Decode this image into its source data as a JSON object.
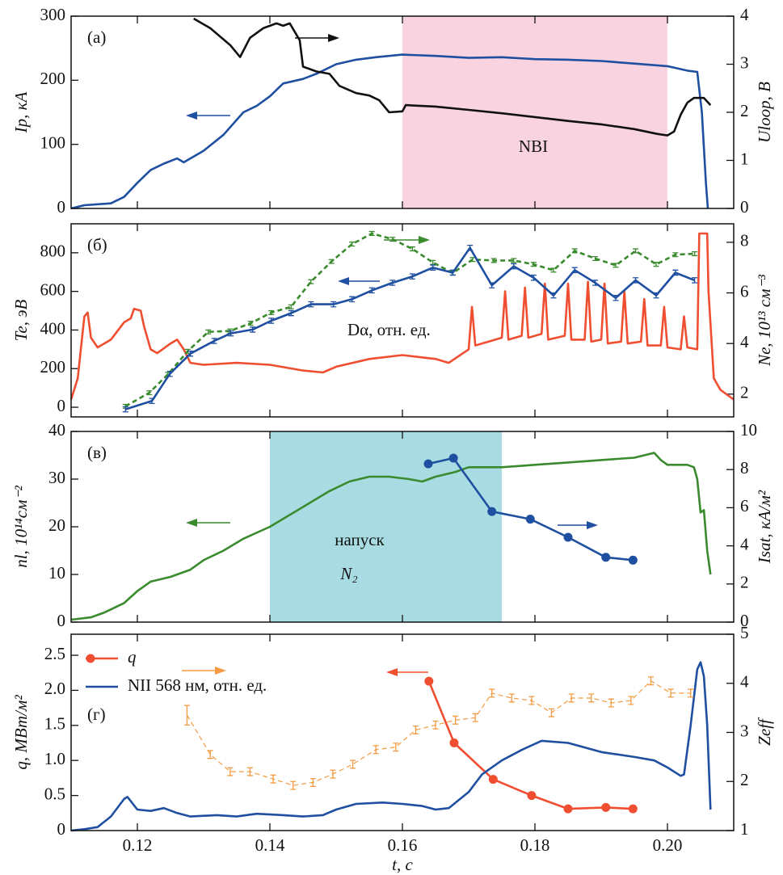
{
  "chart_data": [
    {
      "type": "line",
      "ylabel": "Ip, кА",
      "y2label": "Uloop, В",
      "annotations": [
        "(а)",
        "NBI"
      ],
      "xlim": [
        0.11,
        0.21
      ],
      "xticks": [
        0.12,
        0.14,
        0.16,
        0.18,
        {
          "value": 0.2,
          "label": "0.20"
        }
      ],
      "ylim": [
        0,
        300
      ],
      "yticks": [
        0,
        100,
        200,
        300
      ],
      "y2lim": [
        0,
        4
      ],
      "y2ticks": [
        0,
        1,
        2,
        3,
        4
      ],
      "span": [
        0.16,
        0.2
      ],
      "span_color": "#f9d3e0",
      "series": [
        {
          "color": "#1f4fa0",
          "x": [
            0.11,
            0.112,
            0.116,
            0.118,
            0.12,
            0.122,
            0.124,
            0.126,
            0.127,
            0.13,
            0.133,
            0.136,
            0.138,
            0.14,
            0.142,
            0.145,
            0.147,
            0.15,
            0.153,
            0.156,
            0.16,
            0.165,
            0.17,
            0.175,
            0.18,
            0.185,
            0.19,
            0.195,
            0.2,
            0.203,
            0.2045,
            0.2052,
            0.2058,
            0.2061
          ],
          "values": [
            0,
            5,
            8,
            18,
            40,
            60,
            70,
            78,
            72,
            90,
            115,
            150,
            160,
            175,
            195,
            202,
            210,
            225,
            232,
            236,
            240,
            238,
            235,
            236,
            233,
            232,
            230,
            226,
            222,
            215,
            213,
            150,
            40,
            0
          ]
        },
        {
          "color": "#111111",
          "axis": "y2",
          "x": [
            0.1285,
            0.131,
            0.134,
            0.1355,
            0.137,
            0.139,
            0.141,
            0.142,
            0.143,
            0.1445,
            0.145,
            0.147,
            0.149,
            0.1505,
            0.153,
            0.155,
            0.1565,
            0.158,
            0.16,
            0.1605,
            0.165,
            0.17,
            0.175,
            0.18,
            0.185,
            0.19,
            0.195,
            0.1985,
            0.2,
            0.201,
            0.202,
            0.203,
            0.204,
            0.2055,
            0.2065
          ],
          "values": [
            3.95,
            3.75,
            3.4,
            3.15,
            3.55,
            3.75,
            3.85,
            3.8,
            3.85,
            3.5,
            2.95,
            2.85,
            2.8,
            2.55,
            2.4,
            2.35,
            2.25,
            2.0,
            2.02,
            2.15,
            2.12,
            2.05,
            1.98,
            1.9,
            1.82,
            1.75,
            1.65,
            1.55,
            1.52,
            1.6,
            1.95,
            2.2,
            2.3,
            2.3,
            2.15
          ]
        }
      ]
    },
    {
      "type": "line",
      "ylabel": "Te, эВ",
      "y2label": "Ne, 10¹³ см⁻³",
      "annotations": [
        "(б)",
        "Dα, отн. ед."
      ],
      "xlim": [
        0.11,
        0.21
      ],
      "xticks": [
        0.12,
        0.14,
        0.16,
        0.18,
        {
          "value": 0.2,
          "label": "0.20"
        }
      ],
      "ylim": [
        -50,
        950
      ],
      "yticks": [
        0,
        200,
        400,
        600,
        800
      ],
      "y2lim": [
        1.1,
        8.73
      ],
      "y2ticks": [
        2,
        4,
        6,
        8
      ],
      "series": [
        {
          "color": "#f04e30",
          "x": [
            0.11,
            0.111,
            0.112,
            0.1125,
            0.113,
            0.114,
            0.116,
            0.118,
            0.119,
            0.1195,
            0.1205,
            0.121,
            0.122,
            0.123,
            0.125,
            0.126,
            0.127,
            0.128,
            0.13,
            0.135,
            0.14,
            0.145,
            0.148,
            0.15,
            0.155,
            0.16,
            0.165,
            0.167,
            0.17,
            0.1705,
            0.171,
            0.175,
            0.1755,
            0.176,
            0.178,
            0.1785,
            0.179,
            0.181,
            0.1815,
            0.182,
            0.1845,
            0.185,
            0.1855,
            0.1875,
            0.188,
            0.1885,
            0.19,
            0.1905,
            0.191,
            0.193,
            0.1935,
            0.194,
            0.196,
            0.1965,
            0.197,
            0.199,
            0.1995,
            0.2,
            0.202,
            0.2025,
            0.203,
            0.2045,
            0.2048,
            0.206,
            0.2062,
            0.207,
            0.208,
            0.21
          ],
          "values": [
            40,
            150,
            470,
            490,
            360,
            310,
            350,
            440,
            460,
            510,
            500,
            420,
            300,
            280,
            330,
            350,
            300,
            230,
            220,
            230,
            220,
            190,
            180,
            210,
            250,
            270,
            250,
            230,
            300,
            520,
            320,
            360,
            600,
            350,
            370,
            620,
            360,
            380,
            640,
            350,
            370,
            640,
            350,
            350,
            650,
            340,
            350,
            640,
            330,
            340,
            600,
            330,
            340,
            560,
            320,
            320,
            520,
            310,
            300,
            470,
            310,
            300,
            900,
            900,
            600,
            150,
            90,
            40
          ]
        },
        {
          "color": "#3a8a2e",
          "dash": true,
          "x": [
            0.1182,
            0.1218,
            0.1246,
            0.1276,
            0.1307,
            0.134,
            0.1371,
            0.1402,
            0.1432,
            0.1462,
            0.1493,
            0.1524,
            0.1554,
            0.1585,
            0.1615,
            0.1646,
            0.1676,
            0.1706,
            0.1738,
            0.1768,
            0.1798,
            0.1828,
            0.186,
            0.1891,
            0.1922,
            0.1952,
            0.1983,
            0.2012,
            0.2041
          ],
          "values": [
            5,
            75,
            170,
            290,
            390,
            395,
            435,
            490,
            520,
            650,
            755,
            845,
            900,
            870,
            820,
            750,
            695,
            765,
            760,
            760,
            740,
            710,
            810,
            770,
            735,
            810,
            740,
            790,
            795
          ],
          "errors": [
            10,
            10,
            10,
            10,
            10,
            10,
            10,
            10,
            10,
            10,
            10,
            10,
            10,
            10,
            10,
            10,
            10,
            10,
            10,
            10,
            10,
            10,
            10,
            10,
            10,
            10,
            10,
            10,
            10
          ]
        },
        {
          "color": "#1f4fa0",
          "axis": "y2",
          "x": [
            0.1182,
            0.1222,
            0.1249,
            0.128,
            0.1316,
            0.1341,
            0.1374,
            0.1402,
            0.1432,
            0.1462,
            0.1496,
            0.1524,
            0.1554,
            0.1585,
            0.1615,
            0.1646,
            0.1676,
            0.1702,
            0.1735,
            0.1768,
            0.1798,
            0.1828,
            0.186,
            0.1891,
            0.1922,
            0.1952,
            0.1983,
            0.2012,
            0.2041
          ],
          "values": [
            1.4,
            1.73,
            2.8,
            3.6,
            4.1,
            4.4,
            4.55,
            4.9,
            5.2,
            5.55,
            5.55,
            5.75,
            6.1,
            6.4,
            6.65,
            7.0,
            6.8,
            7.78,
            6.3,
            7.05,
            6.6,
            5.9,
            6.9,
            6.4,
            5.8,
            6.5,
            5.9,
            6.8,
            6.5
          ],
          "errors": [
            0.1,
            0.1,
            0.1,
            0.1,
            0.1,
            0.1,
            0.1,
            0.1,
            0.1,
            0.1,
            0.1,
            0.1,
            0.1,
            0.1,
            0.1,
            0.1,
            0.1,
            0.1,
            0.1,
            0.1,
            0.1,
            0.1,
            0.1,
            0.1,
            0.1,
            0.1,
            0.1,
            0.1,
            0.1
          ]
        }
      ]
    },
    {
      "type": "line",
      "ylabel": "nl, 10¹⁴см⁻²",
      "y2label": "Isat, кА/м²",
      "annotations": [
        "(в)",
        "напуск",
        "N₂"
      ],
      "xlim": [
        0.11,
        0.21
      ],
      "xticks": [
        0.12,
        0.14,
        0.16,
        0.18,
        {
          "value": 0.2,
          "label": "0.20"
        }
      ],
      "ylim": [
        0,
        40
      ],
      "yticks": [
        0,
        10,
        20,
        30,
        40
      ],
      "y2lim": [
        0,
        10
      ],
      "y2ticks": [
        0,
        2,
        4,
        6,
        8,
        10
      ],
      "span": [
        0.14,
        0.175
      ],
      "span_color": "#a9dce2",
      "series": [
        {
          "color": "#3a8a2e",
          "x": [
            0.11,
            0.113,
            0.115,
            0.118,
            0.12,
            0.122,
            0.125,
            0.128,
            0.13,
            0.133,
            0.136,
            0.14,
            0.143,
            0.146,
            0.149,
            0.152,
            0.155,
            0.158,
            0.161,
            0.163,
            0.165,
            0.168,
            0.17,
            0.175,
            0.18,
            0.185,
            0.19,
            0.195,
            0.198,
            0.199,
            0.2,
            0.203,
            0.204,
            0.2045,
            0.205,
            0.2055,
            0.206,
            0.2065
          ],
          "values": [
            0.5,
            1,
            2,
            4,
            6.5,
            8.5,
            9.5,
            11,
            13,
            15,
            17.5,
            20,
            22.5,
            25,
            27.5,
            29.5,
            30.5,
            30.5,
            30,
            29.5,
            30.5,
            31.5,
            32.5,
            32.5,
            33,
            33.5,
            34,
            34.5,
            35.5,
            34,
            33,
            33,
            32.5,
            30,
            23,
            23.5,
            15,
            10
          ]
        },
        {
          "color": "#1f4fa0",
          "axis": "y2",
          "markers": true,
          "x": [
            0.1639,
            0.1677,
            0.1735,
            0.1793,
            0.185,
            0.1907,
            0.1948
          ],
          "values": [
            8.3,
            8.6,
            5.8,
            5.4,
            4.45,
            3.4,
            3.25
          ]
        }
      ]
    },
    {
      "type": "line",
      "ylabel": "q, МВт/м²",
      "y2label": "Zeff",
      "xlabel": "t, с",
      "annotations": [
        "(г)"
      ],
      "legend": "top-left",
      "xlim": [
        0.11,
        0.21
      ],
      "xticks": [
        0.12,
        0.14,
        0.16,
        0.18,
        {
          "value": 0.2,
          "label": "0.20"
        }
      ],
      "ylim": [
        0,
        2.8
      ],
      "yticks": [
        0,
        0.5,
        {
          "value": 1,
          "label": "1.0"
        },
        1.5,
        {
          "value": 2,
          "label": "2.0"
        },
        2.5
      ],
      "y2lim": [
        1,
        5
      ],
      "y2ticks": [
        1,
        2,
        3,
        4,
        5
      ],
      "series": [
        {
          "name": "q",
          "color": "#f04e30",
          "markers": true,
          "x": [
            0.164,
            0.1678,
            0.1737,
            0.1795,
            0.185,
            0.1907,
            0.1948
          ],
          "values": [
            2.13,
            1.25,
            0.73,
            0.5,
            0.31,
            0.33,
            0.31
          ]
        },
        {
          "name": "NII 568 нм, отн. ед.",
          "color": "#1f4fa0",
          "x": [
            0.11,
            0.112,
            0.114,
            0.116,
            0.118,
            0.1185,
            0.12,
            0.122,
            0.124,
            0.126,
            0.128,
            0.132,
            0.135,
            0.138,
            0.142,
            0.145,
            0.148,
            0.15,
            0.153,
            0.157,
            0.16,
            0.163,
            0.165,
            0.167,
            0.17,
            0.172,
            0.175,
            0.178,
            0.181,
            0.185,
            0.19,
            0.195,
            0.198,
            0.2,
            0.202,
            0.2025,
            0.2035,
            0.2045,
            0.205,
            0.2055,
            0.206,
            0.2065
          ],
          "values": [
            0,
            0.02,
            0.05,
            0.2,
            0.45,
            0.48,
            0.3,
            0.28,
            0.32,
            0.25,
            0.2,
            0.22,
            0.2,
            0.24,
            0.22,
            0.2,
            0.22,
            0.3,
            0.38,
            0.4,
            0.38,
            0.35,
            0.3,
            0.32,
            0.55,
            0.8,
            1.0,
            1.15,
            1.28,
            1.25,
            1.12,
            1.05,
            1.0,
            0.9,
            0.78,
            0.8,
            1.5,
            2.3,
            2.4,
            2.2,
            1.5,
            0.3
          ]
        },
        {
          "color": "#f59a42",
          "axis": "y2",
          "dash": true,
          "thin": true,
          "x": [
            0.1275,
            0.131,
            0.134,
            0.137,
            0.1405,
            0.1435,
            0.1465,
            0.1495,
            0.1525,
            0.156,
            0.159,
            0.162,
            0.165,
            0.168,
            0.171,
            0.1735,
            0.1765,
            0.1795,
            0.1825,
            0.1855,
            0.1885,
            0.1915,
            0.1945,
            0.1975,
            0.2005,
            0.2035
          ],
          "values": [
            3.35,
            2.55,
            2.2,
            2.2,
            2.05,
            1.92,
            1.98,
            2.15,
            2.35,
            2.65,
            2.7,
            3.05,
            3.15,
            3.25,
            3.3,
            3.8,
            3.7,
            3.65,
            3.4,
            3.7,
            3.7,
            3.6,
            3.65,
            4.05,
            3.8,
            3.8
          ],
          "errors": [
            0.2,
            0.08,
            0.08,
            0.08,
            0.08,
            0.08,
            0.08,
            0.08,
            0.08,
            0.08,
            0.08,
            0.08,
            0.08,
            0.08,
            0.08,
            0.08,
            0.08,
            0.08,
            0.08,
            0.08,
            0.08,
            0.08,
            0.08,
            0.08,
            0.08,
            0.08
          ]
        }
      ]
    }
  ]
}
